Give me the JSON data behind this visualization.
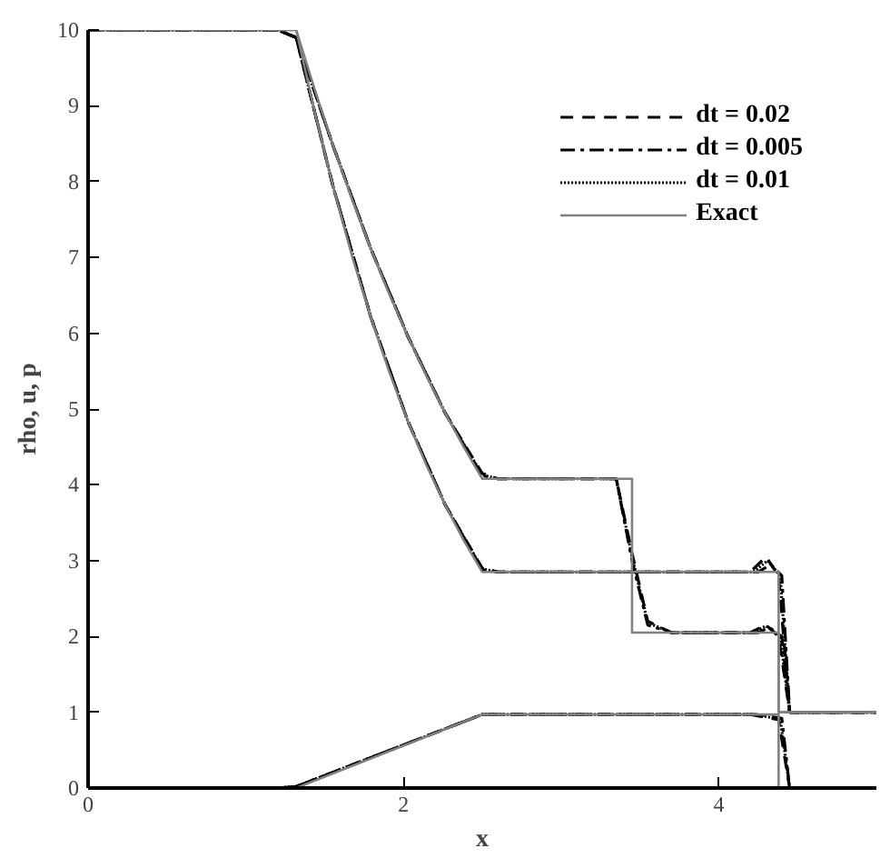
{
  "chart_data": {
    "type": "line",
    "xlabel": "x",
    "ylabel": "rho, u, p",
    "xlim": [
      0,
      5
    ],
    "ylim": [
      0,
      10
    ],
    "xticks": [
      0,
      2,
      4
    ],
    "yticks": [
      0,
      1,
      2,
      3,
      4,
      5,
      6,
      7,
      8,
      9,
      10
    ],
    "grid": false,
    "legend": "top right",
    "marker": "none",
    "series": [
      {
        "name": "dt = 0.02",
        "color": "#000000",
        "line_style": "dashed",
        "x": [
          0,
          1.2,
          1.32,
          1.556,
          1.792,
          2.028,
          2.264,
          2.5,
          2.6,
          3.35,
          3.45,
          3.55,
          3.7,
          4.2,
          4.3,
          4.38,
          4.45,
          5
        ],
        "values": [
          10,
          10,
          9.9,
          8.46,
          7.12,
          5.96,
          4.95,
          4.15,
          4.08,
          4.08,
          3.1,
          2.2,
          2.05,
          2.05,
          2.15,
          2.0,
          1,
          1
        ]
      },
      {
        "color": "#000000",
        "line_style": "dashed",
        "x": [
          0,
          1.2,
          1.32,
          1.556,
          1.792,
          2.028,
          2.264,
          2.5,
          2.6,
          4.2,
          4.3,
          4.38,
          4.45,
          5
        ],
        "values": [
          10,
          10,
          9.9,
          7.92,
          6.22,
          4.84,
          3.74,
          2.9,
          2.85,
          2.85,
          3.05,
          2.8,
          1,
          1
        ]
      },
      {
        "color": "#000000",
        "line_style": "dashed",
        "x": [
          0,
          1.2,
          1.32,
          2.5,
          4.2,
          4.38,
          4.45,
          5
        ],
        "values": [
          0,
          0,
          0.02,
          0.97,
          0.97,
          0.9,
          0,
          0
        ]
      },
      {
        "name": "dt = 0.005",
        "color": "#000000",
        "line_style": "dashdot",
        "x": [
          0,
          1.2,
          1.32,
          1.556,
          1.792,
          2.028,
          2.264,
          2.5,
          2.6,
          3.35,
          3.45,
          3.55,
          3.7,
          4.25,
          4.32,
          4.4,
          4.45,
          5
        ],
        "values": [
          10,
          10,
          9.9,
          8.46,
          7.12,
          5.96,
          4.95,
          4.12,
          4.08,
          4.08,
          3.0,
          2.15,
          2.05,
          2.05,
          2.12,
          2.0,
          1,
          1
        ]
      },
      {
        "color": "#000000",
        "line_style": "dashdot",
        "x": [
          0,
          1.2,
          1.32,
          1.556,
          1.792,
          2.028,
          2.264,
          2.5,
          2.6,
          4.25,
          4.33,
          4.4,
          4.45,
          5
        ],
        "values": [
          10,
          10,
          9.9,
          7.92,
          6.22,
          4.84,
          3.74,
          2.88,
          2.85,
          2.85,
          2.95,
          2.8,
          1,
          1
        ]
      },
      {
        "color": "#000000",
        "line_style": "dashdot",
        "x": [
          0,
          1.2,
          1.32,
          2.5,
          4.25,
          4.4,
          4.45,
          5
        ],
        "values": [
          0,
          0,
          0.02,
          0.97,
          0.97,
          0.92,
          0,
          0
        ]
      },
      {
        "name": "dt = 0.01",
        "color": "#000000",
        "line_style": "dotted",
        "x": [
          0,
          1.2,
          1.32,
          1.556,
          1.792,
          2.028,
          2.264,
          2.5,
          2.6,
          3.35,
          3.45,
          3.55,
          3.7,
          4.22,
          4.3,
          4.39,
          4.45,
          5
        ],
        "values": [
          10,
          10,
          9.9,
          8.46,
          7.12,
          5.96,
          4.95,
          4.13,
          4.08,
          4.08,
          3.05,
          2.18,
          2.05,
          2.05,
          2.14,
          2.0,
          1,
          1
        ]
      },
      {
        "color": "#000000",
        "line_style": "dotted",
        "x": [
          0,
          1.2,
          1.32,
          1.556,
          1.792,
          2.028,
          2.264,
          2.5,
          2.6,
          4.22,
          4.31,
          4.39,
          4.45,
          5
        ],
        "values": [
          10,
          10,
          9.9,
          7.92,
          6.22,
          4.84,
          3.74,
          2.89,
          2.85,
          2.85,
          3.0,
          2.8,
          1,
          1
        ]
      },
      {
        "color": "#000000",
        "line_style": "dotted",
        "x": [
          0,
          1.2,
          1.32,
          2.5,
          4.22,
          4.39,
          4.45,
          5
        ],
        "values": [
          0,
          0,
          0.02,
          0.97,
          0.97,
          0.91,
          0,
          0
        ]
      },
      {
        "name": "Exact",
        "color": "#808080",
        "line_style": "solid",
        "x": [
          0,
          1.32,
          1.438,
          1.556,
          1.674,
          1.792,
          1.91,
          2.028,
          2.146,
          2.264,
          2.382,
          2.5,
          3.45,
          3.45,
          4.38,
          4.38,
          5
        ],
        "values": [
          10,
          10,
          9.21,
          8.46,
          7.77,
          7.12,
          6.52,
          5.96,
          5.44,
          4.95,
          4.5,
          4.08,
          4.08,
          2.05,
          2.05,
          1,
          1
        ]
      },
      {
        "color": "#808080",
        "line_style": "solid",
        "x": [
          0,
          1.32,
          1.438,
          1.556,
          1.674,
          1.792,
          1.91,
          2.028,
          2.146,
          2.264,
          2.382,
          2.5,
          4.38,
          4.38,
          5
        ],
        "values": [
          10,
          10,
          8.91,
          7.92,
          7.02,
          6.22,
          5.49,
          4.84,
          4.26,
          3.74,
          3.27,
          2.85,
          2.85,
          1,
          1
        ]
      },
      {
        "color": "#808080",
        "line_style": "solid",
        "x": [
          0,
          1.32,
          2.5,
          4.38,
          4.38,
          5
        ],
        "values": [
          0,
          0,
          0.97,
          0.97,
          0,
          0
        ]
      }
    ]
  }
}
